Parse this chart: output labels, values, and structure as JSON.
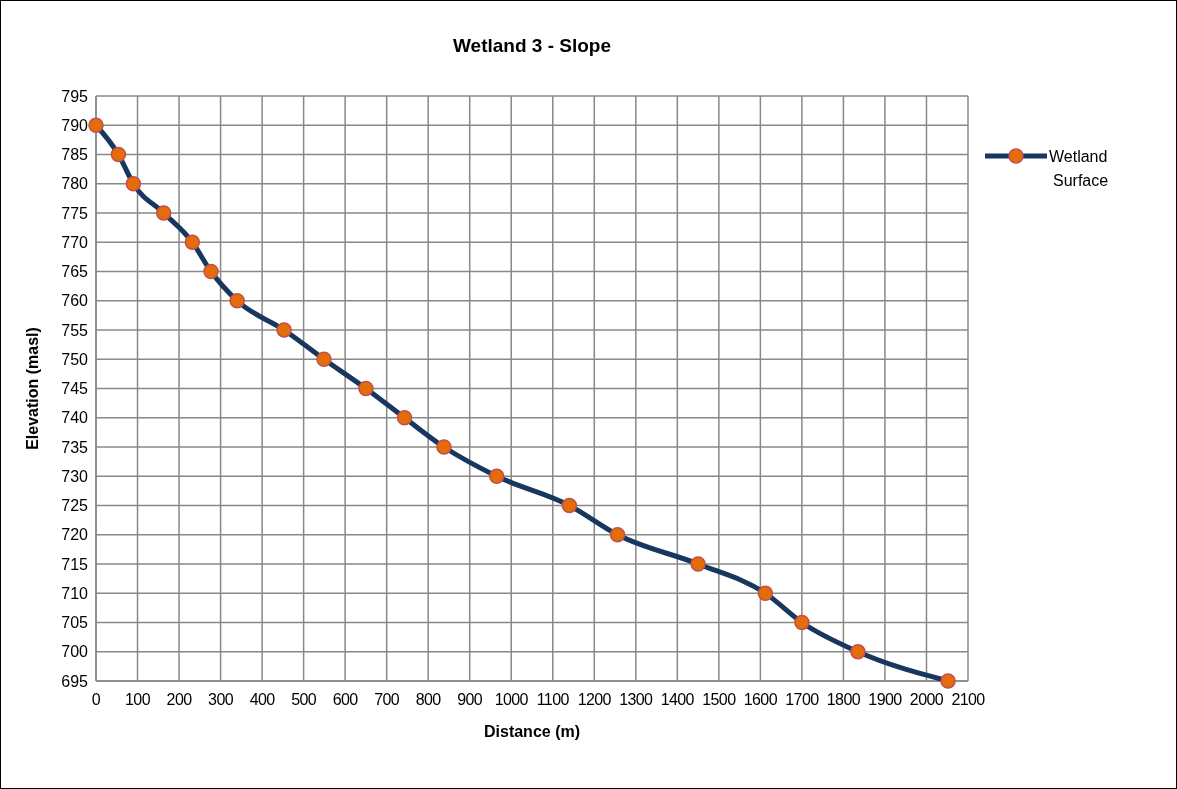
{
  "chart_data": {
    "type": "line",
    "title": "Wetland  3 - Slope",
    "xlabel": "Distance (m)",
    "ylabel": "Elevation (masl)",
    "x": [
      0,
      54,
      90,
      163,
      232,
      277,
      340,
      453,
      549,
      650,
      743,
      838,
      965,
      1140,
      1256,
      1450,
      1612,
      1700,
      1835,
      2052
    ],
    "series": [
      {
        "name": "Wetland Surface",
        "color": "#17375e",
        "values": [
          790,
          785,
          780,
          775,
          770,
          765,
          760,
          755,
          750,
          745,
          740,
          735,
          730,
          725,
          720,
          715,
          710,
          705,
          700,
          695
        ]
      }
    ],
    "xlim": [
      0,
      2100
    ],
    "xticks": [
      0,
      100,
      200,
      300,
      400,
      500,
      600,
      700,
      800,
      900,
      1000,
      1100,
      1200,
      1300,
      1400,
      1500,
      1600,
      1700,
      1800,
      1900,
      2000,
      2100
    ],
    "ylim": [
      695,
      795
    ],
    "yticks": [
      695,
      700,
      705,
      710,
      715,
      720,
      725,
      730,
      735,
      740,
      745,
      750,
      755,
      760,
      765,
      770,
      775,
      780,
      785,
      790,
      795
    ],
    "grid": true,
    "legend": "right",
    "marker": "circle",
    "line_style": "solid"
  }
}
